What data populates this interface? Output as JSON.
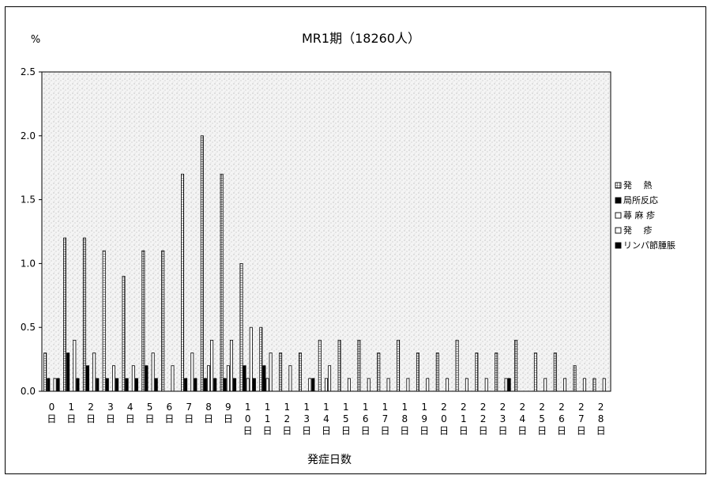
{
  "chart_data": {
    "type": "bar",
    "title": "MR1期（18260人）",
    "ylabel": "%",
    "xlabel": "発症日数",
    "ylim": [
      0,
      2.5
    ],
    "yticks": [
      "0.0",
      "0.5",
      "1.0",
      "1.5",
      "2.0",
      "2.5"
    ],
    "categories": [
      "0日",
      "1日",
      "2日",
      "3日",
      "4日",
      "5日",
      "6日",
      "7日",
      "8日",
      "9日",
      "10日",
      "11日",
      "12日",
      "13日",
      "14日",
      "15日",
      "16日",
      "17日",
      "18日",
      "19日",
      "20日",
      "21日",
      "22日",
      "23日",
      "24日",
      "25日",
      "26日",
      "27日",
      "28日"
    ],
    "category_labels": [
      [
        "0",
        "日"
      ],
      [
        "1",
        "日"
      ],
      [
        "2",
        "日"
      ],
      [
        "3",
        "日"
      ],
      [
        "4",
        "日"
      ],
      [
        "5",
        "日"
      ],
      [
        "6",
        "日"
      ],
      [
        "7",
        "日"
      ],
      [
        "8",
        "日"
      ],
      [
        "9",
        "日"
      ],
      [
        "1",
        "0",
        "日"
      ],
      [
        "1",
        "1",
        "日"
      ],
      [
        "1",
        "2",
        "日"
      ],
      [
        "1",
        "3",
        "日"
      ],
      [
        "1",
        "4",
        "日"
      ],
      [
        "1",
        "5",
        "日"
      ],
      [
        "1",
        "6",
        "日"
      ],
      [
        "1",
        "7",
        "日"
      ],
      [
        "1",
        "8",
        "日"
      ],
      [
        "1",
        "9",
        "日"
      ],
      [
        "2",
        "0",
        "日"
      ],
      [
        "2",
        "1",
        "日"
      ],
      [
        "2",
        "2",
        "日"
      ],
      [
        "2",
        "3",
        "日"
      ],
      [
        "2",
        "4",
        "日"
      ],
      [
        "2",
        "5",
        "日"
      ],
      [
        "2",
        "6",
        "日"
      ],
      [
        "2",
        "7",
        "日"
      ],
      [
        "2",
        "8",
        "日"
      ]
    ],
    "series": [
      {
        "name": "発　 熱",
        "pattern": "grid",
        "values": [
          0.3,
          1.2,
          1.2,
          1.1,
          0.9,
          1.1,
          1.1,
          1.7,
          2.0,
          1.7,
          1.0,
          0.5,
          0.3,
          0.3,
          0.4,
          0.4,
          0.4,
          0.3,
          0.4,
          0.3,
          0.3,
          0.4,
          0.3,
          0.3,
          0.4,
          0.3,
          0.3,
          0.2,
          0.1
        ]
      },
      {
        "name": "局所反応",
        "pattern": "solid",
        "values": [
          0.1,
          0.3,
          0.2,
          0.1,
          0.1,
          0.2,
          0.0,
          0.1,
          0.1,
          0.1,
          0.2,
          0.2,
          0.0,
          0.0,
          0.0,
          0.0,
          0.0,
          0.0,
          0.0,
          0.0,
          0.0,
          0.0,
          0.0,
          0.0,
          0.0,
          0.0,
          0.0,
          0.0,
          0.0
        ]
      },
      {
        "name": "蕁 麻 疹",
        "pattern": "white",
        "values": [
          0.0,
          0.0,
          0.0,
          0.0,
          0.0,
          0.0,
          0.0,
          0.0,
          0.2,
          0.2,
          0.1,
          0.1,
          0.0,
          0.0,
          0.1,
          0.0,
          0.0,
          0.0,
          0.0,
          0.0,
          0.0,
          0.0,
          0.0,
          0.0,
          0.0,
          0.0,
          0.0,
          0.0,
          0.0
        ]
      },
      {
        "name": "発　 疹",
        "pattern": "white",
        "values": [
          0.1,
          0.4,
          0.3,
          0.2,
          0.2,
          0.3,
          0.2,
          0.3,
          0.4,
          0.4,
          0.5,
          0.3,
          0.2,
          0.1,
          0.2,
          0.1,
          0.1,
          0.1,
          0.1,
          0.1,
          0.1,
          0.1,
          0.1,
          0.1,
          0.0,
          0.1,
          0.1,
          0.1,
          0.1
        ]
      },
      {
        "name": "リンパ節腫脹",
        "pattern": "solid",
        "values": [
          0.1,
          0.1,
          0.1,
          0.1,
          0.1,
          0.1,
          0.0,
          0.1,
          0.1,
          0.1,
          0.1,
          0.0,
          0.0,
          0.1,
          0.0,
          0.0,
          0.0,
          0.0,
          0.0,
          0.0,
          0.0,
          0.0,
          0.0,
          0.1,
          0.0,
          0.0,
          0.0,
          0.0,
          0.0
        ]
      }
    ],
    "legend_position": "right",
    "grid": false,
    "plot_background": "stippled-gray"
  }
}
